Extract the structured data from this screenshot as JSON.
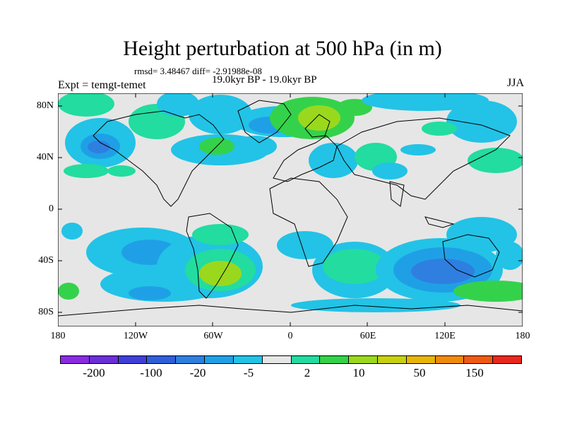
{
  "title": "Height perturbation at 500 hPa (in m)",
  "rmsd_text": "rmsd= 3.48467 diff= -2.91988e-08",
  "time_text": "19.0kyr BP - 19.0kyr BP",
  "expt_text": "Expt = temgt-temet",
  "season": "JJA",
  "lat_labels": [
    "80N",
    "40N",
    "0",
    "40S",
    "80S"
  ],
  "lon_labels": [
    "180",
    "120W",
    "60W",
    "0",
    "60E",
    "120E",
    "180"
  ],
  "colorbar": {
    "colors": [
      "#8a2be2",
      "#6a2fd6",
      "#3f3fd8",
      "#2f5ed8",
      "#2f7fe0",
      "#1fa0e6",
      "#22c3e6",
      "#e6e6e6",
      "#22dca0",
      "#34d24a",
      "#9ad81e",
      "#c8d010",
      "#e8b40a",
      "#ef8a0c",
      "#ef5a12",
      "#e8281e"
    ],
    "labels": [
      "-200",
      "-100",
      "-20",
      "-5",
      "2",
      "10",
      "50",
      "150"
    ]
  },
  "palette": {
    "land_outline": "#000000",
    "ocean_bg": "#e6e6e6"
  }
}
